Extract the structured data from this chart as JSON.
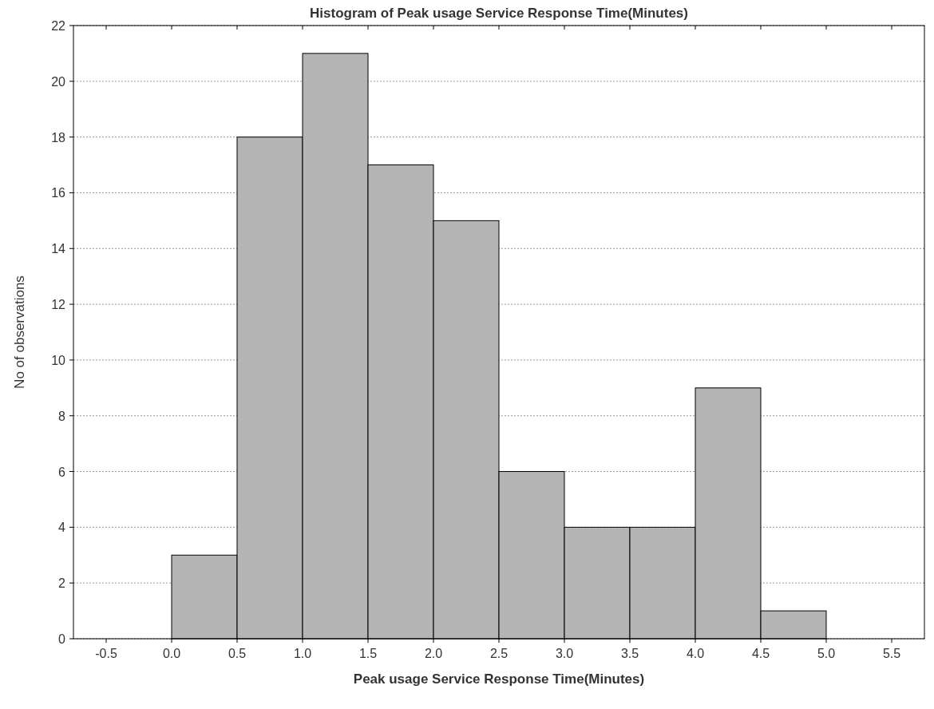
{
  "chart_data": {
    "type": "histogram",
    "title": "Histogram of Peak usage Service Response Time(Minutes)",
    "xlabel": "Peak usage Service Response Time(Minutes)",
    "ylabel": "No of observations",
    "bins": [
      0,
      0.5,
      1,
      1.5,
      2,
      2.5,
      3,
      3.5,
      4,
      4.5,
      5
    ],
    "values": [
      3,
      18,
      21,
      17,
      15,
      6,
      4,
      4,
      9,
      1
    ],
    "color": "#b4b4b4",
    "xlim": [
      -0.75,
      5.75
    ],
    "xticks": [
      {
        "value": -0.5,
        "label": "-0.5"
      },
      {
        "value": 0,
        "label": "0.0"
      },
      {
        "value": 0.5,
        "label": "0.5"
      },
      {
        "value": 1,
        "label": "1.0"
      },
      {
        "value": 1.5,
        "label": "1.5"
      },
      {
        "value": 2,
        "label": "2.0"
      },
      {
        "value": 2.5,
        "label": "2.5"
      },
      {
        "value": 3,
        "label": "3.0"
      },
      {
        "value": 3.5,
        "label": "3.5"
      },
      {
        "value": 4,
        "label": "4.0"
      },
      {
        "value": 4.5,
        "label": "4.5"
      },
      {
        "value": 5,
        "label": "5.0"
      },
      {
        "value": 5.5,
        "label": "5.5"
      }
    ],
    "ylim": [
      0,
      22
    ],
    "yticks": [
      0,
      2,
      4,
      6,
      8,
      10,
      12,
      14,
      16,
      18,
      20,
      22
    ],
    "grid": "y"
  }
}
